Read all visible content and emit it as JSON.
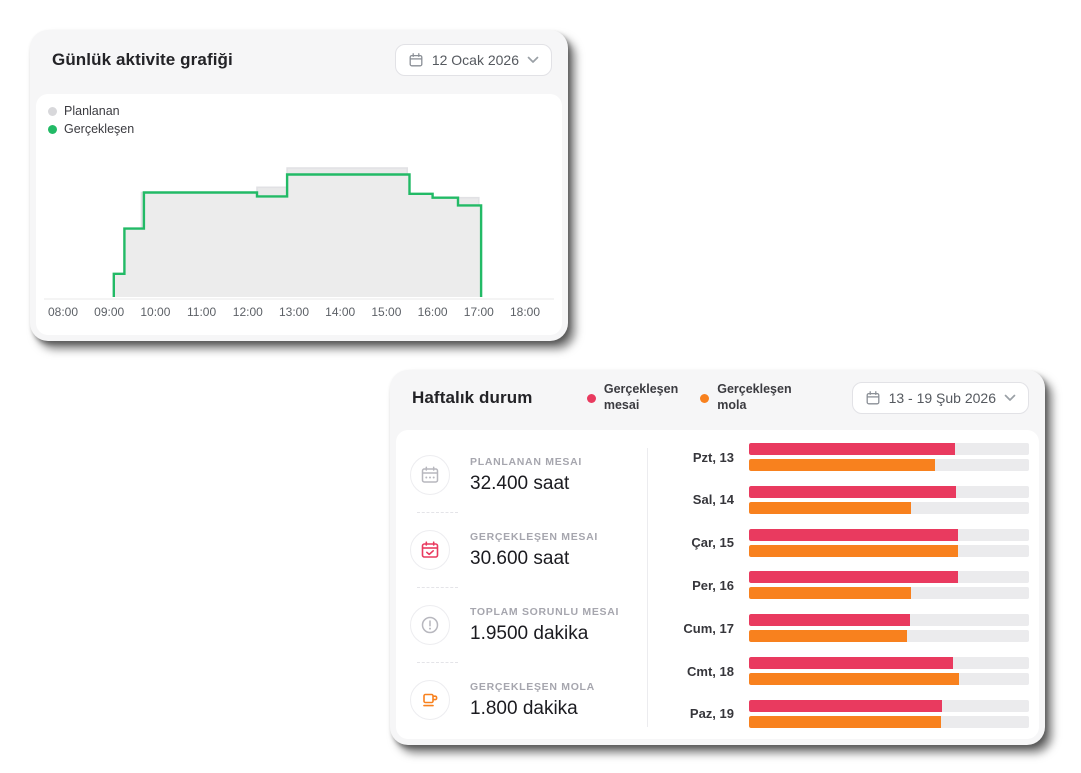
{
  "daily_card": {
    "title": "Günlük aktivite grafiği",
    "date_picker": {
      "value": "12 Ocak 2026"
    },
    "legend": [
      {
        "label": "Planlanan",
        "color": "#d8d8db"
      },
      {
        "label": "Gerçekleşen",
        "color": "#22ba66"
      }
    ],
    "chart_data": {
      "type": "area",
      "subtype": "step",
      "title": "Günlük aktivite grafiği",
      "x_ticks": [
        "08:00",
        "09:00",
        "10:00",
        "11:00",
        "12:00",
        "13:00",
        "14:00",
        "15:00",
        "16:00",
        "17:00",
        "18:00"
      ],
      "x_range_hours": [
        8,
        18
      ],
      "y_unit": "percent_of_max",
      "y_range": [
        0,
        100
      ],
      "grid": false,
      "legend_position": "top-left",
      "series": [
        {
          "name": "Planlanan",
          "fill": "#e9e9ea",
          "line": "#e1e1e4",
          "steps": [
            [
              9.7,
              81
            ],
            [
              12.2,
              85
            ],
            [
              12.85,
              100
            ],
            [
              15.45,
              77
            ]
          ],
          "end": 17.0
        },
        {
          "name": "Gerçekleşen",
          "fill": "#ececec",
          "line": "#22ba66",
          "steps": [
            [
              9.1,
              18
            ],
            [
              9.33,
              53
            ],
            [
              9.75,
              81
            ],
            [
              12.2,
              78
            ],
            [
              12.85,
              95
            ],
            [
              15.5,
              80
            ],
            [
              16.0,
              77
            ],
            [
              16.55,
              71
            ]
          ],
          "end": 17.05
        }
      ]
    }
  },
  "weekly_card": {
    "title": "Haftalık durum",
    "date_picker": {
      "value": "13 - 19 Şub 2026"
    },
    "legend": [
      {
        "label_line1": "Gerçekleşen",
        "label_line2": "mesai",
        "color": "#e93a5f"
      },
      {
        "label_line1": "Gerçekleşen",
        "label_line2": "mola",
        "color": "#f8811e"
      }
    ],
    "stats": [
      {
        "icon": "calendar-planned-icon",
        "color": "#b7b7be",
        "label": "PLANLANAN MESAI",
        "value": "32.400 saat"
      },
      {
        "icon": "calendar-check-icon",
        "color": "#e93a5f",
        "label": "GERÇEKLEŞEN MESAI",
        "value": "30.600 saat"
      },
      {
        "icon": "alert-circle-icon",
        "color": "#b7b7be",
        "label": "TOPLAM SORUNLU MESAI",
        "value": "1.9500 dakika"
      },
      {
        "icon": "coffee-cup-icon",
        "color": "#f8811e",
        "label": "GERÇEKLEŞEN MOLA",
        "value": "1.800 dakika"
      }
    ],
    "chart_data": {
      "type": "bar",
      "orientation": "horizontal",
      "title": "Haftalık durum",
      "categories": [
        "Pzt, 13",
        "Sal, 14",
        "Çar, 15",
        "Per, 16",
        "Cum, 17",
        "Cmt, 18",
        "Paz, 19"
      ],
      "value_unit": "percent_of_track",
      "max": 100,
      "track_color": "#ebebed",
      "series": [
        {
          "name": "Gerçekleşen mesai",
          "color": "#e93a5f",
          "values": [
            73.5,
            74,
            74.5,
            74.5,
            57.5,
            73,
            69
          ]
        },
        {
          "name": "Gerçekleşen mola",
          "color": "#f8811e",
          "values": [
            66.5,
            58,
            74.5,
            58,
            56.5,
            75,
            68.5
          ]
        }
      ]
    }
  }
}
